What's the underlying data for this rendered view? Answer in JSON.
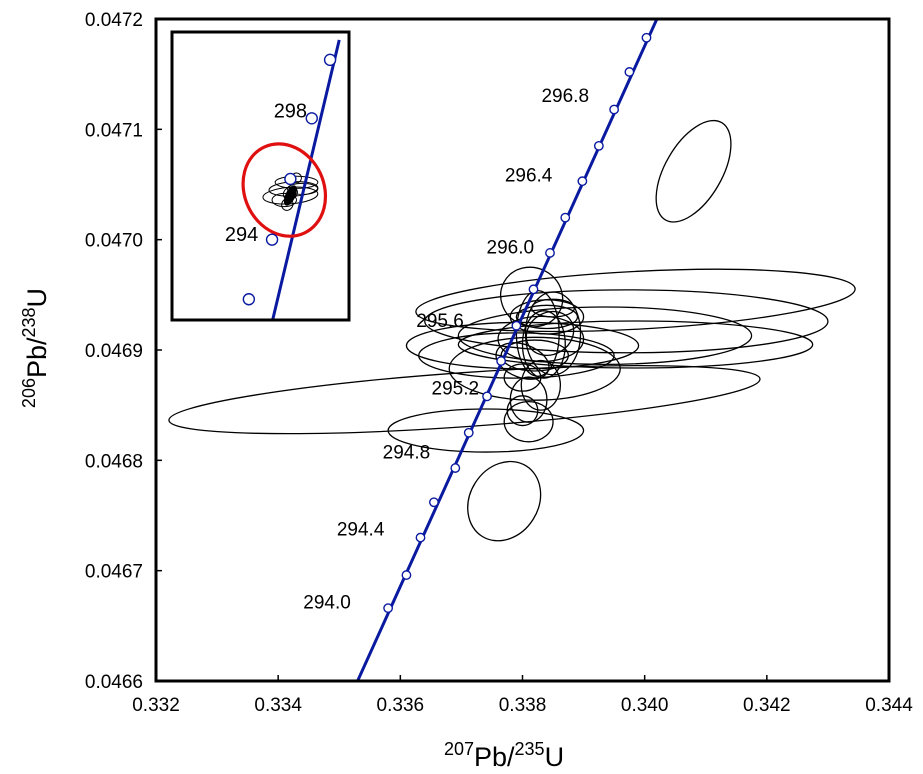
{
  "chart_data": {
    "type": "scatter",
    "subtype": "concordia diagram with error ellipses",
    "x_axis": {
      "label_sup1": "207",
      "label_base1": "Pb/",
      "label_sup2": "235",
      "label_base2": "U",
      "range": [
        0.332,
        0.344
      ],
      "ticks": [
        0.332,
        0.334,
        0.336,
        0.338,
        0.34,
        0.342,
        0.344
      ],
      "tick_labels": [
        "0.332",
        "0.334",
        "0.336",
        "0.338",
        "0.340",
        "0.342",
        "0.344"
      ]
    },
    "y_axis": {
      "label_sup1": "206",
      "label_base1": "Pb/",
      "label_sup2": "238",
      "label_base2": "U",
      "range": [
        0.0466,
        0.0472
      ],
      "ticks": [
        0.0466,
        0.0467,
        0.0468,
        0.0469,
        0.047,
        0.0471,
        0.0472
      ],
      "tick_labels": [
        "0.0466",
        "0.0467",
        "0.0468",
        "0.0469",
        "0.0470",
        "0.0471",
        "0.0472"
      ]
    },
    "grid": false,
    "colors": {
      "concordia": "#0a1aa0",
      "marker_fill": "#ffffff",
      "ellipse": "#000000",
      "highlight": "#e01010"
    },
    "concordia_line": [
      [
        0.3353,
        0.0466
      ],
      [
        0.3402,
        0.0472
      ]
    ],
    "concordia_markers": [
      [
        0.3358,
        0.046666
      ],
      [
        0.3361,
        0.046696
      ],
      [
        0.33633,
        0.04673
      ],
      [
        0.33655,
        0.046762
      ],
      [
        0.3369,
        0.046793
      ],
      [
        0.33712,
        0.046825
      ],
      [
        0.33742,
        0.046858
      ],
      [
        0.33765,
        0.04689
      ],
      [
        0.3379,
        0.046922
      ],
      [
        0.33818,
        0.046955
      ],
      [
        0.33845,
        0.046988
      ],
      [
        0.3387,
        0.04702
      ],
      [
        0.33898,
        0.047053
      ],
      [
        0.33925,
        0.047085
      ],
      [
        0.3395,
        0.047118
      ],
      [
        0.33975,
        0.047152
      ],
      [
        0.34003,
        0.047183
      ]
    ],
    "age_labels": [
      {
        "text": "294.0",
        "x": 0.3348,
        "y": 0.046672
      },
      {
        "text": "294.4",
        "x": 0.33535,
        "y": 0.046738
      },
      {
        "text": "294.8",
        "x": 0.3361,
        "y": 0.046808
      },
      {
        "text": "295.2",
        "x": 0.3369,
        "y": 0.046866
      },
      {
        "text": "295.6",
        "x": 0.33665,
        "y": 0.046927
      },
      {
        "text": "296.0",
        "x": 0.3378,
        "y": 0.046994
      },
      {
        "text": "296.4",
        "x": 0.3381,
        "y": 0.047059
      },
      {
        "text": "296.8",
        "x": 0.3387,
        "y": 0.047131
      }
    ],
    "ellipses": [
      {
        "cx": 0.33705,
        "cy": 0.046855,
        "rx": 0.00485,
        "ry": 2.45e-05,
        "angle": 4
      },
      {
        "cx": 0.33985,
        "cy": 0.046945,
        "rx": 0.0036,
        "ry": 2.62e-05,
        "angle": 3
      },
      {
        "cx": 0.3397,
        "cy": 0.046926,
        "rx": 0.0033,
        "ry": 2.85e-05,
        "angle": 0
      },
      {
        "cx": 0.33935,
        "cy": 0.046913,
        "rx": 0.0024,
        "ry": 2.6e-05,
        "angle": 0
      },
      {
        "cx": 0.33985,
        "cy": 0.046905,
        "rx": 0.0029,
        "ry": 2.13e-05,
        "angle": 0
      },
      {
        "cx": 0.338,
        "cy": 0.046904,
        "rx": 0.0019,
        "ry": 2.1e-05,
        "angle": 0
      },
      {
        "cx": 0.3379,
        "cy": 0.046895,
        "rx": 0.0016,
        "ry": 2.05e-05,
        "angle": 0
      },
      {
        "cx": 0.3382,
        "cy": 0.046883,
        "rx": 0.0014,
        "ry": 2.85e-05,
        "angle": 0
      },
      {
        "cx": 0.3374,
        "cy": 0.046827,
        "rx": 0.0016,
        "ry": 1.95e-05,
        "angle": 0
      },
      {
        "cx": 0.3408,
        "cy": 0.047062,
        "rx": 0.00092,
        "ry": 2.58e-05,
        "angle": 60
      },
      {
        "cx": 0.3377,
        "cy": 0.046763,
        "rx": 0.00068,
        "ry": 3.1e-05,
        "angle": 58
      },
      {
        "cx": 0.33815,
        "cy": 0.046948,
        "rx": 0.00048,
        "ry": 2.85e-05,
        "angle": 62
      },
      {
        "cx": 0.33825,
        "cy": 0.046915,
        "rx": 0.00035,
        "ry": 3.88e-05,
        "angle": 0
      },
      {
        "cx": 0.3385,
        "cy": 0.046915,
        "rx": 0.00045,
        "ry": 3.75e-05,
        "angle": 0
      },
      {
        "cx": 0.33835,
        "cy": 0.046905,
        "rx": 0.00035,
        "ry": 3.05e-05,
        "angle": 0
      },
      {
        "cx": 0.3383,
        "cy": 0.04691,
        "rx": 0.0007,
        "ry": 2.05e-05,
        "angle": 0
      },
      {
        "cx": 0.3384,
        "cy": 0.04693,
        "rx": 0.0006,
        "ry": 1.55e-05,
        "angle": 0
      },
      {
        "cx": 0.3382,
        "cy": 0.046895,
        "rx": 0.00055,
        "ry": 1.4e-05,
        "angle": 0
      },
      {
        "cx": 0.3381,
        "cy": 0.046855,
        "rx": 0.0003,
        "ry": 2.05e-05,
        "angle": 0
      },
      {
        "cx": 0.3381,
        "cy": 0.046835,
        "rx": 0.0004,
        "ry": 1.82e-05,
        "angle": 0
      },
      {
        "cx": 0.338,
        "cy": 0.046845,
        "rx": 0.00025,
        "ry": 1.35e-05,
        "angle": 0
      },
      {
        "cx": 0.3383,
        "cy": 0.046868,
        "rx": 0.00032,
        "ry": 2.25e-05,
        "angle": 0
      },
      {
        "cx": 0.3384,
        "cy": 0.04693,
        "rx": 0.0005,
        "ry": 1.05e-05,
        "angle": 0
      },
      {
        "cx": 0.3385,
        "cy": 0.046938,
        "rx": 0.00035,
        "ry": 8e-06,
        "angle": 0
      },
      {
        "cx": 0.338,
        "cy": 0.046875,
        "rx": 0.0003,
        "ry": 1.23e-05,
        "angle": 0
      },
      {
        "cx": 0.33845,
        "cy": 0.046915,
        "rx": 0.0004,
        "ry": 1.9e-05,
        "angle": 30
      },
      {
        "cx": 0.338,
        "cy": 0.04689,
        "rx": 0.00045,
        "ry": 1.5e-05,
        "angle": -20
      }
    ],
    "inset": {
      "labels": [
        {
          "text": "298",
          "x": 0.3342,
          "y": 0.047117
        },
        {
          "text": "294",
          "x": 0.3334,
          "y": 0.047005
        }
      ],
      "concordia_line": [
        [
          0.3339,
          0.046925
        ],
        [
          0.335,
          0.047181
        ]
      ],
      "concordia_markers": [
        [
          0.33352,
          0.046946
        ],
        [
          0.3339,
          0.047
        ],
        [
          0.3342,
          0.047055
        ],
        [
          0.33455,
          0.04711
        ],
        [
          0.33485,
          0.047163
        ]
      ],
      "highlight_ellipse": {
        "cx": 0.3341,
        "cy": 0.047045,
        "rx": 0.00065,
        "ry": 4.3e-05,
        "angle": 25
      },
      "small_ellipses": [
        {
          "cx": 0.3342,
          "cy": 0.04704,
          "rx": 0.00045,
          "ry": 7.5e-06,
          "angle": 4
        },
        {
          "cx": 0.33425,
          "cy": 0.047046,
          "rx": 0.0004,
          "ry": 6.5e-06,
          "angle": 3
        },
        {
          "cx": 0.3343,
          "cy": 0.047052,
          "rx": 0.00035,
          "ry": 5.5e-06,
          "angle": 0
        },
        {
          "cx": 0.3344,
          "cy": 0.047046,
          "rx": 0.00025,
          "ry": 5e-06,
          "angle": 0
        },
        {
          "cx": 0.3341,
          "cy": 0.047036,
          "rx": 0.0002,
          "ry": 6e-06,
          "angle": 0
        },
        {
          "cx": 0.3342,
          "cy": 0.047042,
          "rx": 0.00012,
          "ry": 5.5e-06,
          "angle": 30
        },
        {
          "cx": 0.33415,
          "cy": 0.047032,
          "rx": 0.0001,
          "ry": 5e-06,
          "angle": 60
        },
        {
          "cx": 0.3343,
          "cy": 0.047056,
          "rx": 8e-05,
          "ry": 4.5e-06,
          "angle": 60
        }
      ]
    }
  }
}
